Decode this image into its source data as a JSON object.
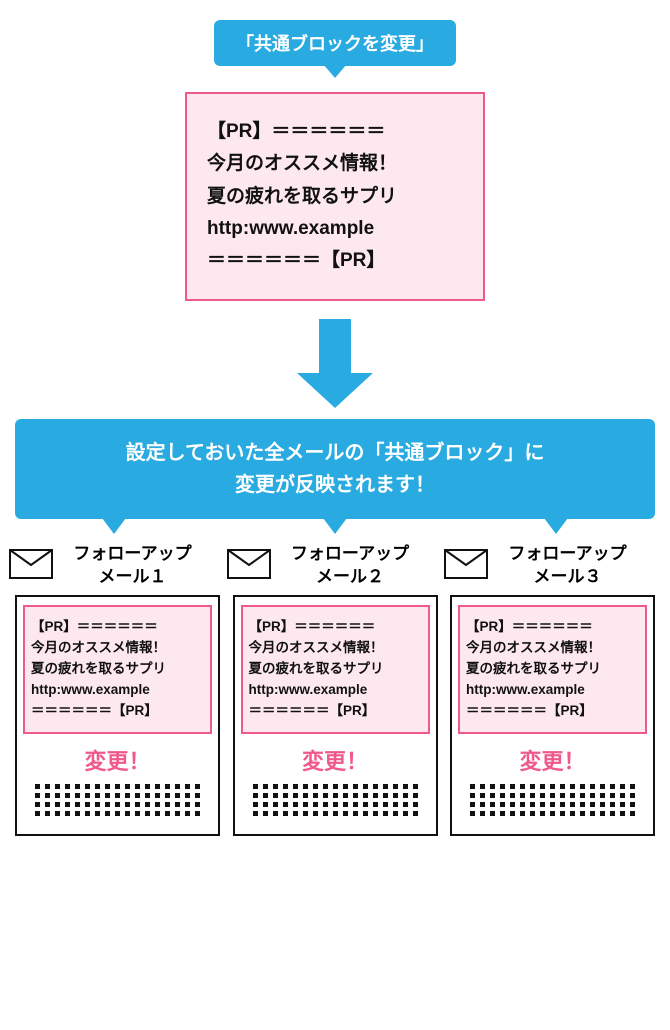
{
  "colors": {
    "blue": "#29abe2",
    "pink_border": "#ef5a8a",
    "pink_bg": "#fde8ef",
    "black": "#111111",
    "white": "#ffffff"
  },
  "top_label": "「共通ブロックを変更」",
  "pr_block": {
    "lines": [
      "【PR】＝＝＝＝＝＝",
      "今月のオススメ情報！",
      "夏の疲れを取るサプリ",
      "http:www.example",
      "＝＝＝＝＝＝【PR】"
    ]
  },
  "banner": {
    "line1": "設定しておいた全メールの「共通ブロック」に",
    "line2": "変更が反映されます！"
  },
  "columns": [
    {
      "title_line1": "フォローアップ",
      "title_line2": "メール１",
      "changed": "変更！"
    },
    {
      "title_line1": "フォローアップ",
      "title_line2": "メール２",
      "changed": "変更！"
    },
    {
      "title_line1": "フォローアップ",
      "title_line2": "メール３",
      "changed": "変更！"
    }
  ],
  "pr_small_lines": [
    "【PR】＝＝＝＝＝＝",
    "今月のオススメ情報！",
    "夏の疲れを取るサプリ",
    "http:www.example",
    "＝＝＝＝＝＝【PR】"
  ],
  "dot_rows": 4,
  "dots_per_row": 17,
  "tail_positions_pct": [
    15.5,
    50,
    84.5
  ]
}
